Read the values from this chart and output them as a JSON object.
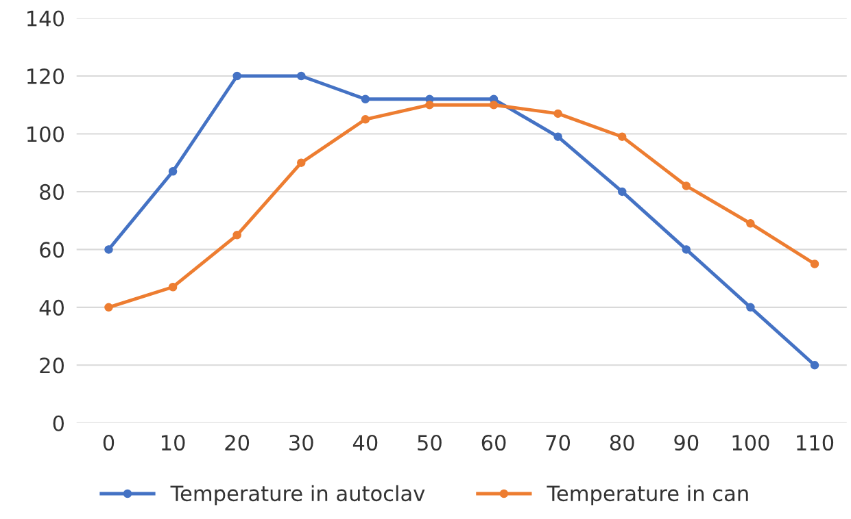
{
  "chart_data": {
    "type": "line",
    "categories": [
      "0",
      "10",
      "20",
      "30",
      "40",
      "50",
      "60",
      "70",
      "80",
      "90",
      "100",
      "110"
    ],
    "series": [
      {
        "name": "Temperature in autoclav",
        "color": "#4472c4",
        "values": [
          60,
          87,
          120,
          120,
          112,
          112,
          112,
          99,
          80,
          60,
          40,
          20
        ]
      },
      {
        "name": "Temperature in can",
        "color": "#ed7d31",
        "values": [
          40,
          47,
          65,
          90,
          105,
          110,
          110,
          107,
          99,
          82,
          69,
          55
        ]
      }
    ],
    "ylim": [
      0,
      140
    ],
    "yticks": [
      0,
      20,
      40,
      60,
      80,
      100,
      120,
      140
    ],
    "grid": "y",
    "legend": "bottom",
    "marker": "circle",
    "line_style": "solid"
  }
}
